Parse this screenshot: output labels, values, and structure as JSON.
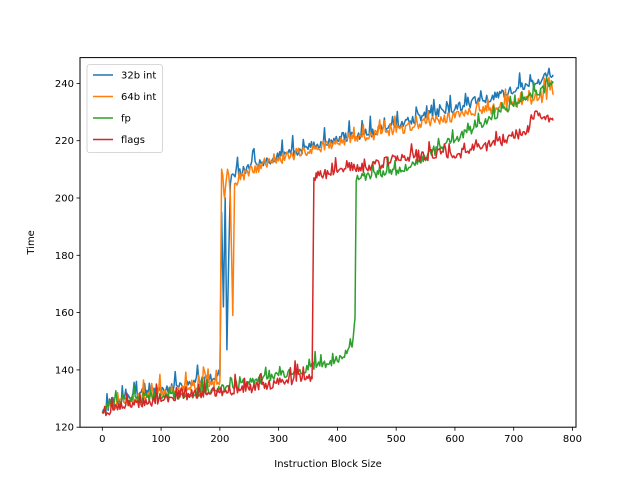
{
  "chart_data": {
    "type": "line",
    "title": "",
    "xlabel": "Instruction Block Size",
    "ylabel": "Time",
    "xlim": [
      -38,
      806
    ],
    "ylim": [
      120,
      249
    ],
    "xticks": [
      0,
      100,
      200,
      300,
      400,
      500,
      600,
      700,
      800
    ],
    "yticks": [
      120,
      140,
      160,
      180,
      200,
      220,
      240
    ],
    "grid": false,
    "legend_position": "upper-left",
    "series": [
      {
        "name": "32b int",
        "color": "#1f77b4",
        "points": [
          [
            0,
            125
          ],
          [
            20,
            128
          ],
          [
            50,
            130
          ],
          [
            100,
            132
          ],
          [
            150,
            135
          ],
          [
            190,
            137
          ],
          [
            200,
            138
          ],
          [
            203,
            195
          ],
          [
            206,
            162
          ],
          [
            209,
            200
          ],
          [
            212,
            147
          ],
          [
            215,
            179
          ],
          [
            218,
            205
          ],
          [
            224,
            208
          ],
          [
            250,
            210
          ],
          [
            300,
            214
          ],
          [
            350,
            217
          ],
          [
            400,
            220
          ],
          [
            450,
            222
          ],
          [
            500,
            225
          ],
          [
            550,
            228
          ],
          [
            600,
            231
          ],
          [
            650,
            234
          ],
          [
            700,
            237
          ],
          [
            740,
            240
          ],
          [
            767,
            243
          ]
        ]
      },
      {
        "name": "64b int",
        "color": "#ff7f0e",
        "points": [
          [
            0,
            125
          ],
          [
            20,
            127
          ],
          [
            50,
            129
          ],
          [
            100,
            131
          ],
          [
            150,
            133
          ],
          [
            195,
            135
          ],
          [
            200,
            136
          ],
          [
            203,
            210
          ],
          [
            208,
            200
          ],
          [
            213,
            210
          ],
          [
            218,
            200
          ],
          [
            222,
            159
          ],
          [
            225,
            205
          ],
          [
            250,
            209
          ],
          [
            300,
            213
          ],
          [
            350,
            216
          ],
          [
            400,
            219
          ],
          [
            450,
            221
          ],
          [
            500,
            223
          ],
          [
            550,
            226
          ],
          [
            600,
            228
          ],
          [
            650,
            230
          ],
          [
            700,
            232
          ],
          [
            740,
            234
          ],
          [
            767,
            236
          ]
        ]
      },
      {
        "name": "fp",
        "color": "#2ca02c",
        "points": [
          [
            0,
            125
          ],
          [
            15,
            128
          ],
          [
            50,
            129
          ],
          [
            100,
            130
          ],
          [
            150,
            131
          ],
          [
            200,
            133
          ],
          [
            250,
            135
          ],
          [
            300,
            138
          ],
          [
            350,
            140
          ],
          [
            400,
            143
          ],
          [
            425,
            148
          ],
          [
            430,
            158
          ],
          [
            432,
            206
          ],
          [
            440,
            207
          ],
          [
            480,
            208
          ],
          [
            520,
            210
          ],
          [
            560,
            215
          ],
          [
            600,
            220
          ],
          [
            650,
            226
          ],
          [
            700,
            232
          ],
          [
            740,
            236
          ],
          [
            767,
            240
          ]
        ]
      },
      {
        "name": "flags",
        "color": "#d62728",
        "points": [
          [
            0,
            125
          ],
          [
            20,
            126
          ],
          [
            50,
            127
          ],
          [
            100,
            129
          ],
          [
            150,
            131
          ],
          [
            200,
            132
          ],
          [
            250,
            133
          ],
          [
            300,
            135
          ],
          [
            350,
            137
          ],
          [
            357,
            137
          ],
          [
            360,
            207
          ],
          [
            365,
            207
          ],
          [
            400,
            209
          ],
          [
            450,
            210
          ],
          [
            500,
            213
          ],
          [
            550,
            214
          ],
          [
            580,
            216
          ],
          [
            600,
            214
          ],
          [
            620,
            216
          ],
          [
            660,
            218
          ],
          [
            700,
            221
          ],
          [
            725,
            223
          ],
          [
            730,
            229
          ],
          [
            767,
            227
          ]
        ]
      }
    ]
  }
}
